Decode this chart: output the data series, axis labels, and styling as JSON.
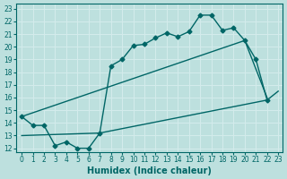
{
  "xlabel": "Humidex (Indice chaleur)",
  "xlim_min": -0.5,
  "xlim_max": 23.4,
  "ylim_min": 11.7,
  "ylim_max": 23.4,
  "bg_color": "#bde0de",
  "grid_color": "#d4ecec",
  "line_color": "#006666",
  "xticks": [
    0,
    1,
    2,
    3,
    4,
    5,
    6,
    7,
    8,
    9,
    10,
    11,
    12,
    13,
    14,
    15,
    16,
    17,
    18,
    19,
    20,
    21,
    22,
    23
  ],
  "yticks": [
    12,
    13,
    14,
    15,
    16,
    17,
    18,
    19,
    20,
    21,
    22,
    23
  ],
  "marker_curve_x": [
    0,
    1,
    2,
    3,
    4,
    5,
    6,
    7,
    8,
    9,
    10,
    11,
    12,
    13,
    14,
    15,
    16,
    17,
    18,
    19,
    20,
    21,
    22
  ],
  "marker_curve_y": [
    14.5,
    13.8,
    13.8,
    12.2,
    12.5,
    12.0,
    12.0,
    13.2,
    18.5,
    19.0,
    20.1,
    20.2,
    20.7,
    21.1,
    20.8,
    21.2,
    22.5,
    22.5,
    21.3,
    21.5,
    20.5,
    19.0,
    15.8
  ],
  "upper_curve_x": [
    0,
    20,
    22
  ],
  "upper_curve_y": [
    14.5,
    20.5,
    16.0
  ],
  "lower_curve_x": [
    0,
    7,
    22,
    23
  ],
  "lower_curve_y": [
    13.0,
    13.2,
    15.8,
    16.5
  ],
  "marker": "D",
  "markersize": 2.5,
  "linewidth": 1.0,
  "tick_fontsize": 5.5,
  "xlabel_fontsize": 7
}
